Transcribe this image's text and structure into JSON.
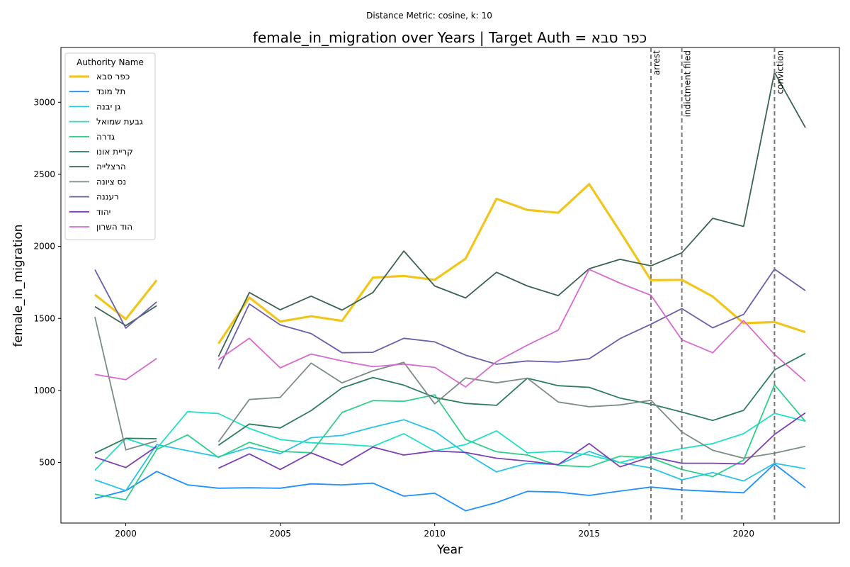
{
  "chart_data": {
    "type": "line",
    "suptitle": "Distance Metric: cosine, k: 10",
    "title": "female_in_migration over Years | Target Auth = כפר סבא",
    "xlabel": "Year",
    "ylabel": "female_in_migration",
    "xlim": [
      1997.9,
      2023.1
    ],
    "ylim": [
      80,
      3380
    ],
    "xticks": [
      2000,
      2005,
      2010,
      2015,
      2020
    ],
    "yticks": [
      500,
      1000,
      1500,
      2000,
      2500,
      3000
    ],
    "legend": {
      "title": "Authority Name",
      "position": "top-left"
    },
    "events": [
      {
        "x": 2017,
        "label": "arrest"
      },
      {
        "x": 2018,
        "label": "indictment filed"
      },
      {
        "x": 2021,
        "label": "conviction"
      }
    ],
    "x": [
      1999,
      2000,
      2001,
      2002,
      2003,
      2004,
      2005,
      2006,
      2007,
      2008,
      2009,
      2010,
      2011,
      2012,
      2013,
      2014,
      2015,
      2016,
      2017,
      2018,
      2019,
      2020,
      2021,
      2022
    ],
    "series": [
      {
        "name": "כפר סבא",
        "color": "#f1c61c",
        "width": 3.2,
        "values": [
          1665,
          1495,
          1765,
          null,
          1325,
          1645,
          1478,
          1515,
          1483,
          1783,
          1795,
          1768,
          1915,
          2330,
          2253,
          2233,
          2432,
          2103,
          1765,
          1768,
          1652,
          1467,
          1475,
          1405
        ]
      },
      {
        "name": "תל מונד",
        "color": "#1e90ff",
        "width": 1.8,
        "values": [
          250,
          305,
          438,
          345,
          322,
          325,
          322,
          352,
          345,
          357,
          267,
          287,
          165,
          222,
          300,
          295,
          272,
          302,
          330,
          310,
          300,
          290,
          490,
          325
        ]
      },
      {
        "name": "גן יבנה",
        "color": "#27c4e6",
        "width": 1.8,
        "values": [
          380,
          305,
          625,
          582,
          540,
          605,
          562,
          672,
          688,
          745,
          797,
          717,
          565,
          435,
          495,
          485,
          577,
          500,
          462,
          380,
          430,
          372,
          495,
          457
        ]
      },
      {
        "name": "גבעת שמואל",
        "color": "#20e0c5",
        "width": 1.8,
        "values": [
          447,
          667,
          597,
          853,
          840,
          737,
          660,
          637,
          627,
          612,
          700,
          580,
          625,
          720,
          567,
          578,
          552,
          500,
          555,
          597,
          632,
          700,
          842,
          787
        ]
      },
      {
        "name": "גדרה",
        "color": "#2ecf8a",
        "width": 1.8,
        "values": [
          280,
          241,
          590,
          692,
          535,
          640,
          577,
          568,
          847,
          930,
          925,
          970,
          660,
          575,
          552,
          480,
          470,
          545,
          532,
          452,
          402,
          517,
          1040,
          785
        ]
      },
      {
        "name": "קריית אונו",
        "color": "#2e7d5e",
        "width": 1.8,
        "values": [
          565,
          668,
          665,
          null,
          620,
          767,
          740,
          860,
          1018,
          1090,
          1037,
          952,
          910,
          897,
          1085,
          1033,
          1022,
          947,
          905,
          850,
          792,
          862,
          1143,
          1257
        ]
      },
      {
        "name": "הרצלייה",
        "color": "#3c6450",
        "width": 1.8,
        "values": [
          1582,
          1450,
          1588,
          null,
          1235,
          1680,
          1560,
          1655,
          1558,
          1680,
          1968,
          1725,
          1642,
          1820,
          1725,
          1658,
          1845,
          1910,
          1865,
          1955,
          2195,
          2138,
          3207,
          2825
        ]
      },
      {
        "name": "נס ציונה",
        "color": "#7d8c85",
        "width": 1.8,
        "values": [
          1510,
          588,
          650,
          null,
          643,
          937,
          952,
          1190,
          1053,
          1137,
          1195,
          907,
          1087,
          1053,
          1085,
          920,
          887,
          900,
          932,
          712,
          585,
          530,
          565,
          612
        ]
      },
      {
        "name": "רעננה",
        "color": "#6a5fa8",
        "width": 1.8,
        "values": [
          1838,
          1433,
          1615,
          null,
          1150,
          1600,
          1455,
          1395,
          1262,
          1265,
          1362,
          1337,
          1245,
          1182,
          1205,
          1197,
          1220,
          1360,
          1460,
          1568,
          1435,
          1528,
          1842,
          1693
        ]
      },
      {
        "name": "יהוד",
        "color": "#7e3fb5",
        "width": 1.8,
        "values": [
          537,
          465,
          612,
          null,
          460,
          560,
          452,
          567,
          482,
          607,
          552,
          580,
          570,
          530,
          510,
          485,
          632,
          470,
          540,
          495,
          495,
          490,
          695,
          845
        ]
      },
      {
        "name": "הוד השרון",
        "color": "#d66bd0",
        "width": 1.8,
        "values": [
          1112,
          1075,
          1222,
          null,
          1213,
          1362,
          1157,
          1253,
          1205,
          1165,
          1183,
          1160,
          1025,
          1200,
          1315,
          1418,
          1840,
          1745,
          1660,
          1352,
          1262,
          1485,
          1250,
          1063
        ]
      }
    ]
  }
}
